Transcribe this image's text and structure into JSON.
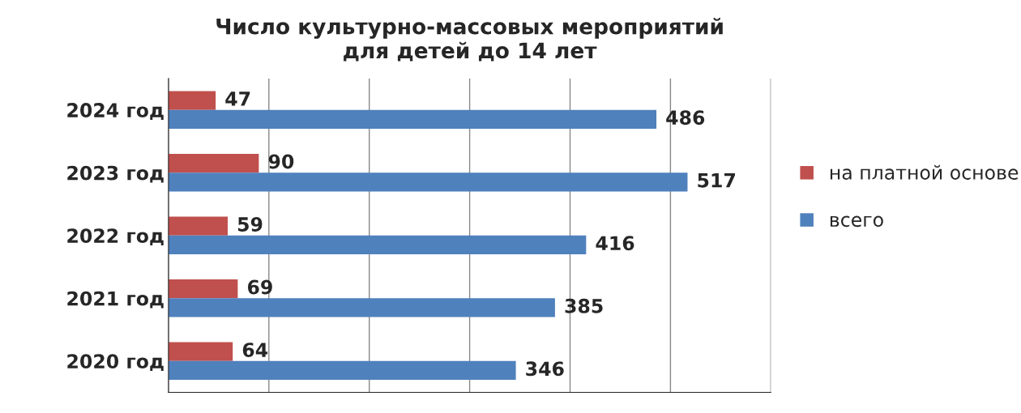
{
  "chart_data": {
    "type": "bar",
    "orientation": "horizontal",
    "title": "Число культурно-массовых мероприятий\nдля детей до 14 лет",
    "categories": [
      "2024 год",
      "2023 год",
      "2022 год",
      "2021 год",
      "2020 год"
    ],
    "series": [
      {
        "name": "на платной основе",
        "color": "#c0504d",
        "values": [
          47,
          90,
          59,
          69,
          64
        ]
      },
      {
        "name": "всего",
        "color": "#4f81bd",
        "values": [
          486,
          517,
          416,
          385,
          346
        ]
      }
    ],
    "xlim": [
      0,
      600
    ],
    "xticks": [
      {
        "value": 0,
        "label": null
      },
      {
        "value": 100,
        "label": null
      },
      {
        "value": 200,
        "label": null
      },
      {
        "value": 300,
        "label": null
      },
      {
        "value": 400,
        "label": null
      },
      {
        "value": 500,
        "label": null
      },
      {
        "value": 600,
        "label": null
      }
    ],
    "tick_labels": "y",
    "grid": "x",
    "legend": "right",
    "data_labels": true
  }
}
